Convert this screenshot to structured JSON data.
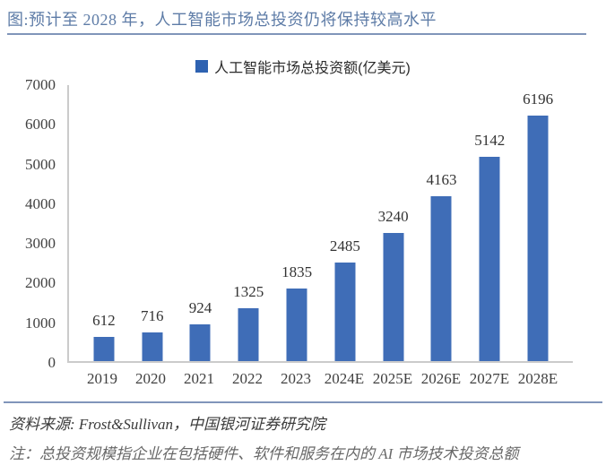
{
  "header": {
    "title": "图:预计至 2028 年，人工智能市场总投资仍将保持较高水平"
  },
  "chart_data": {
    "type": "bar",
    "title": "图:预计至 2028 年，人工智能市场总投资仍将保持较高水平",
    "legend": "人工智能市场总投资额(亿美元)",
    "legend_position": "top",
    "categories": [
      "2019",
      "2020",
      "2021",
      "2022",
      "2023",
      "2024E",
      "2025E",
      "2026E",
      "2027E",
      "2028E"
    ],
    "values": [
      612,
      716,
      924,
      1325,
      1835,
      2485,
      3240,
      4163,
      5142,
      6196
    ],
    "xlabel": "",
    "ylabel": "",
    "ylim": [
      0,
      7000
    ],
    "yticks": [
      0,
      1000,
      2000,
      3000,
      4000,
      5000,
      6000,
      7000
    ],
    "grid": false,
    "data_labels": true,
    "bar_color": "#3f6db7",
    "legend_swatch_color": "#2e62b1"
  },
  "footer": {
    "source": "资料来源: Frost&Sullivan，中国银河证券研究院",
    "note": "注：总投资规模指企业在包括硬件、软件和服务在内的 AI 市场技术投资总额"
  },
  "colors": {
    "title_text": "#5e7ca7",
    "rule": "#8095ba",
    "bar": "#3f6db7",
    "axis_line": "#cbcbcb",
    "tick_text": "#404040",
    "source_text": "#3b3b3b",
    "note_text": "#686868"
  }
}
